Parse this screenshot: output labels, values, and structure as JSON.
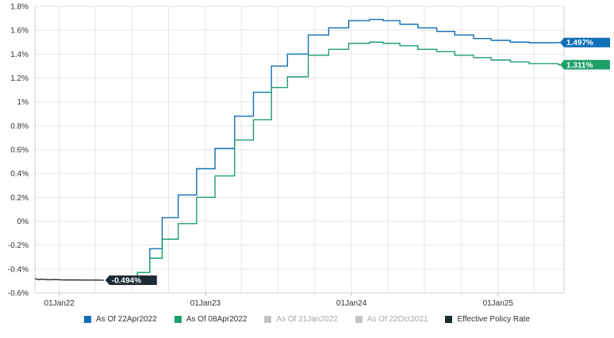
{
  "colors": {
    "accent_blue": "#0f6fb7",
    "accent_green": "#1f9f6b",
    "policy_dark": "#1f2b33",
    "disabled_gray": "#c4c4c4",
    "grid": "#e6e6e6"
  },
  "chart_data": {
    "type": "line",
    "title": "",
    "xlabel": "",
    "ylabel": "",
    "ylim": [
      -0.6,
      1.8
    ],
    "xlim": [
      "2021-11-01",
      "2025-06-15"
    ],
    "y_ticks": [
      "1.8%",
      "1.6%",
      "1.4%",
      "1.2%",
      "1%",
      "0.8%",
      "0.6%",
      "0.4%",
      "0.2%",
      "0%",
      "-0.2%",
      "-0.4%",
      "-0.6%"
    ],
    "x_ticks": [
      {
        "label": "01Jan22",
        "date": "2022-01-01"
      },
      {
        "label": "01Jan23",
        "date": "2023-01-01"
      },
      {
        "label": "01Jan24",
        "date": "2024-01-01"
      },
      {
        "label": "01Jan25",
        "date": "2025-01-01"
      }
    ],
    "grid": true,
    "legend_position": "bottom",
    "series": [
      {
        "name": "As Of 22Apr2022",
        "color": "#0f6fb7",
        "active": true,
        "end_label": "1.497%",
        "points": [
          {
            "x": "2022-05-20",
            "y": -0.494
          },
          {
            "x": "2022-07-15",
            "y": -0.43
          },
          {
            "x": "2022-08-15",
            "y": -0.23
          },
          {
            "x": "2022-09-15",
            "y": 0.03
          },
          {
            "x": "2022-10-25",
            "y": 0.22
          },
          {
            "x": "2022-12-10",
            "y": 0.44
          },
          {
            "x": "2023-01-25",
            "y": 0.61
          },
          {
            "x": "2023-03-15",
            "y": 0.88
          },
          {
            "x": "2023-05-01",
            "y": 1.08
          },
          {
            "x": "2023-06-15",
            "y": 1.3
          },
          {
            "x": "2023-07-25",
            "y": 1.4
          },
          {
            "x": "2023-09-15",
            "y": 1.56
          },
          {
            "x": "2023-11-05",
            "y": 1.62
          },
          {
            "x": "2023-12-25",
            "y": 1.68
          },
          {
            "x": "2024-02-15",
            "y": 1.69
          },
          {
            "x": "2024-03-20",
            "y": 1.68
          },
          {
            "x": "2024-05-01",
            "y": 1.65
          },
          {
            "x": "2024-06-15",
            "y": 1.62
          },
          {
            "x": "2024-08-01",
            "y": 1.59
          },
          {
            "x": "2024-09-15",
            "y": 1.56
          },
          {
            "x": "2024-11-01",
            "y": 1.53
          },
          {
            "x": "2024-12-15",
            "y": 1.515
          },
          {
            "x": "2025-02-01",
            "y": 1.5
          },
          {
            "x": "2025-03-20",
            "y": 1.495
          },
          {
            "x": "2025-06-01",
            "y": 1.497
          }
        ]
      },
      {
        "name": "As Of 08Apr2022",
        "color": "#1f9f6b",
        "active": true,
        "end_label": "1.311%",
        "points": [
          {
            "x": "2022-05-20",
            "y": -0.494
          },
          {
            "x": "2022-07-15",
            "y": -0.43
          },
          {
            "x": "2022-08-15",
            "y": -0.31
          },
          {
            "x": "2022-09-15",
            "y": -0.15
          },
          {
            "x": "2022-10-25",
            "y": -0.02
          },
          {
            "x": "2022-12-10",
            "y": 0.2
          },
          {
            "x": "2023-01-25",
            "y": 0.38
          },
          {
            "x": "2023-03-15",
            "y": 0.68
          },
          {
            "x": "2023-05-01",
            "y": 0.85
          },
          {
            "x": "2023-06-15",
            "y": 1.12
          },
          {
            "x": "2023-07-25",
            "y": 1.21
          },
          {
            "x": "2023-09-15",
            "y": 1.39
          },
          {
            "x": "2023-11-05",
            "y": 1.44
          },
          {
            "x": "2023-12-25",
            "y": 1.49
          },
          {
            "x": "2024-02-15",
            "y": 1.5
          },
          {
            "x": "2024-03-20",
            "y": 1.49
          },
          {
            "x": "2024-05-01",
            "y": 1.47
          },
          {
            "x": "2024-06-15",
            "y": 1.44
          },
          {
            "x": "2024-08-01",
            "y": 1.42
          },
          {
            "x": "2024-09-15",
            "y": 1.39
          },
          {
            "x": "2024-11-01",
            "y": 1.37
          },
          {
            "x": "2024-12-15",
            "y": 1.35
          },
          {
            "x": "2025-02-01",
            "y": 1.335
          },
          {
            "x": "2025-03-20",
            "y": 1.32
          },
          {
            "x": "2025-06-01",
            "y": 1.311
          }
        ]
      },
      {
        "name": "As Of 21Jan2022",
        "color": "#c4c4c4",
        "active": false,
        "points": []
      },
      {
        "name": "As Of 22Oct2021",
        "color": "#c4c4c4",
        "active": false,
        "points": []
      },
      {
        "name": "Effective Policy Rate",
        "color": "#1f2b33",
        "active": true,
        "end_label": "-0.494%",
        "points": [
          {
            "x": "2021-11-01",
            "y": -0.48
          },
          {
            "x": "2021-11-10",
            "y": -0.489
          },
          {
            "x": "2021-11-20",
            "y": -0.485
          },
          {
            "x": "2021-12-05",
            "y": -0.49
          },
          {
            "x": "2021-12-20",
            "y": -0.488
          },
          {
            "x": "2022-01-10",
            "y": -0.492
          },
          {
            "x": "2022-02-01",
            "y": -0.491
          },
          {
            "x": "2022-03-01",
            "y": -0.493
          },
          {
            "x": "2022-04-01",
            "y": -0.493
          },
          {
            "x": "2022-04-22",
            "y": -0.494
          }
        ]
      }
    ]
  }
}
